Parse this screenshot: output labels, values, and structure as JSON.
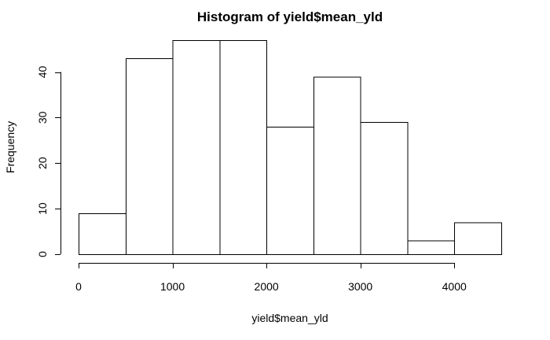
{
  "chart_data": {
    "type": "bar",
    "title": "Histogram of yield$mean_yld",
    "xlabel": "yield$mean_yld",
    "ylabel": "Frequency",
    "bins": [
      {
        "start": 0,
        "end": 500,
        "count": 9
      },
      {
        "start": 500,
        "end": 1000,
        "count": 43
      },
      {
        "start": 1000,
        "end": 1500,
        "count": 47
      },
      {
        "start": 1500,
        "end": 2000,
        "count": 47
      },
      {
        "start": 2000,
        "end": 2500,
        "count": 28
      },
      {
        "start": 2500,
        "end": 3000,
        "count": 39
      },
      {
        "start": 3000,
        "end": 3500,
        "count": 29
      },
      {
        "start": 3500,
        "end": 4000,
        "count": 3
      },
      {
        "start": 4000,
        "end": 4500,
        "count": 7
      }
    ],
    "xlim": [
      0,
      4500
    ],
    "ylim": [
      0,
      47
    ],
    "x_ticks": [
      0,
      1000,
      2000,
      3000,
      4000
    ],
    "y_ticks": [
      0,
      10,
      20,
      30,
      40
    ],
    "grid": false,
    "legend": "none"
  }
}
